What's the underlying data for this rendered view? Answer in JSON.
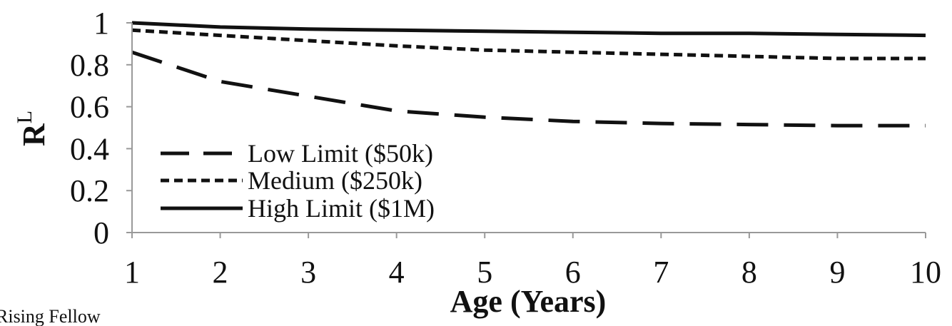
{
  "chart_data": {
    "type": "line",
    "xlabel": "Age (Years)",
    "ylabel": "R",
    "ylabel_superscript": "L",
    "x": [
      1,
      2,
      3,
      4,
      5,
      6,
      7,
      8,
      9,
      10
    ],
    "xlim": [
      1,
      10
    ],
    "ylim": [
      0,
      1
    ],
    "yticks": [
      {
        "value": 0,
        "label": "0"
      },
      {
        "value": 0.2,
        "label": "0.2"
      },
      {
        "value": 0.4,
        "label": "0.4"
      },
      {
        "value": 0.6,
        "label": "0.6"
      },
      {
        "value": 0.8,
        "label": "0.8"
      },
      {
        "value": 1,
        "label": "1"
      }
    ],
    "xticks": [
      {
        "value": 1,
        "label": "1"
      },
      {
        "value": 2,
        "label": "2"
      },
      {
        "value": 3,
        "label": "3"
      },
      {
        "value": 4,
        "label": "4"
      },
      {
        "value": 5,
        "label": "5"
      },
      {
        "value": 6,
        "label": "6"
      },
      {
        "value": 7,
        "label": "7"
      },
      {
        "value": 8,
        "label": "8"
      },
      {
        "value": 9,
        "label": "9"
      },
      {
        "value": 10,
        "label": "10"
      }
    ],
    "grid": false,
    "legend_position": "bottom-left",
    "series": [
      {
        "name": "Low Limit ($50k)",
        "style": "long-dash",
        "color": "#111111",
        "values": [
          0.86,
          0.72,
          0.65,
          0.58,
          0.55,
          0.53,
          0.52,
          0.515,
          0.51,
          0.51
        ]
      },
      {
        "name": "Medium ($250k)",
        "style": "short-dash",
        "color": "#111111",
        "values": [
          0.965,
          0.94,
          0.915,
          0.89,
          0.87,
          0.86,
          0.85,
          0.84,
          0.83,
          0.83
        ]
      },
      {
        "name": "High Limit ($1M)",
        "style": "solid",
        "color": "#111111",
        "values": [
          1.0,
          0.98,
          0.97,
          0.965,
          0.96,
          0.955,
          0.95,
          0.95,
          0.945,
          0.94
        ]
      }
    ]
  },
  "footer": {
    "text": "Rising Fellow"
  }
}
